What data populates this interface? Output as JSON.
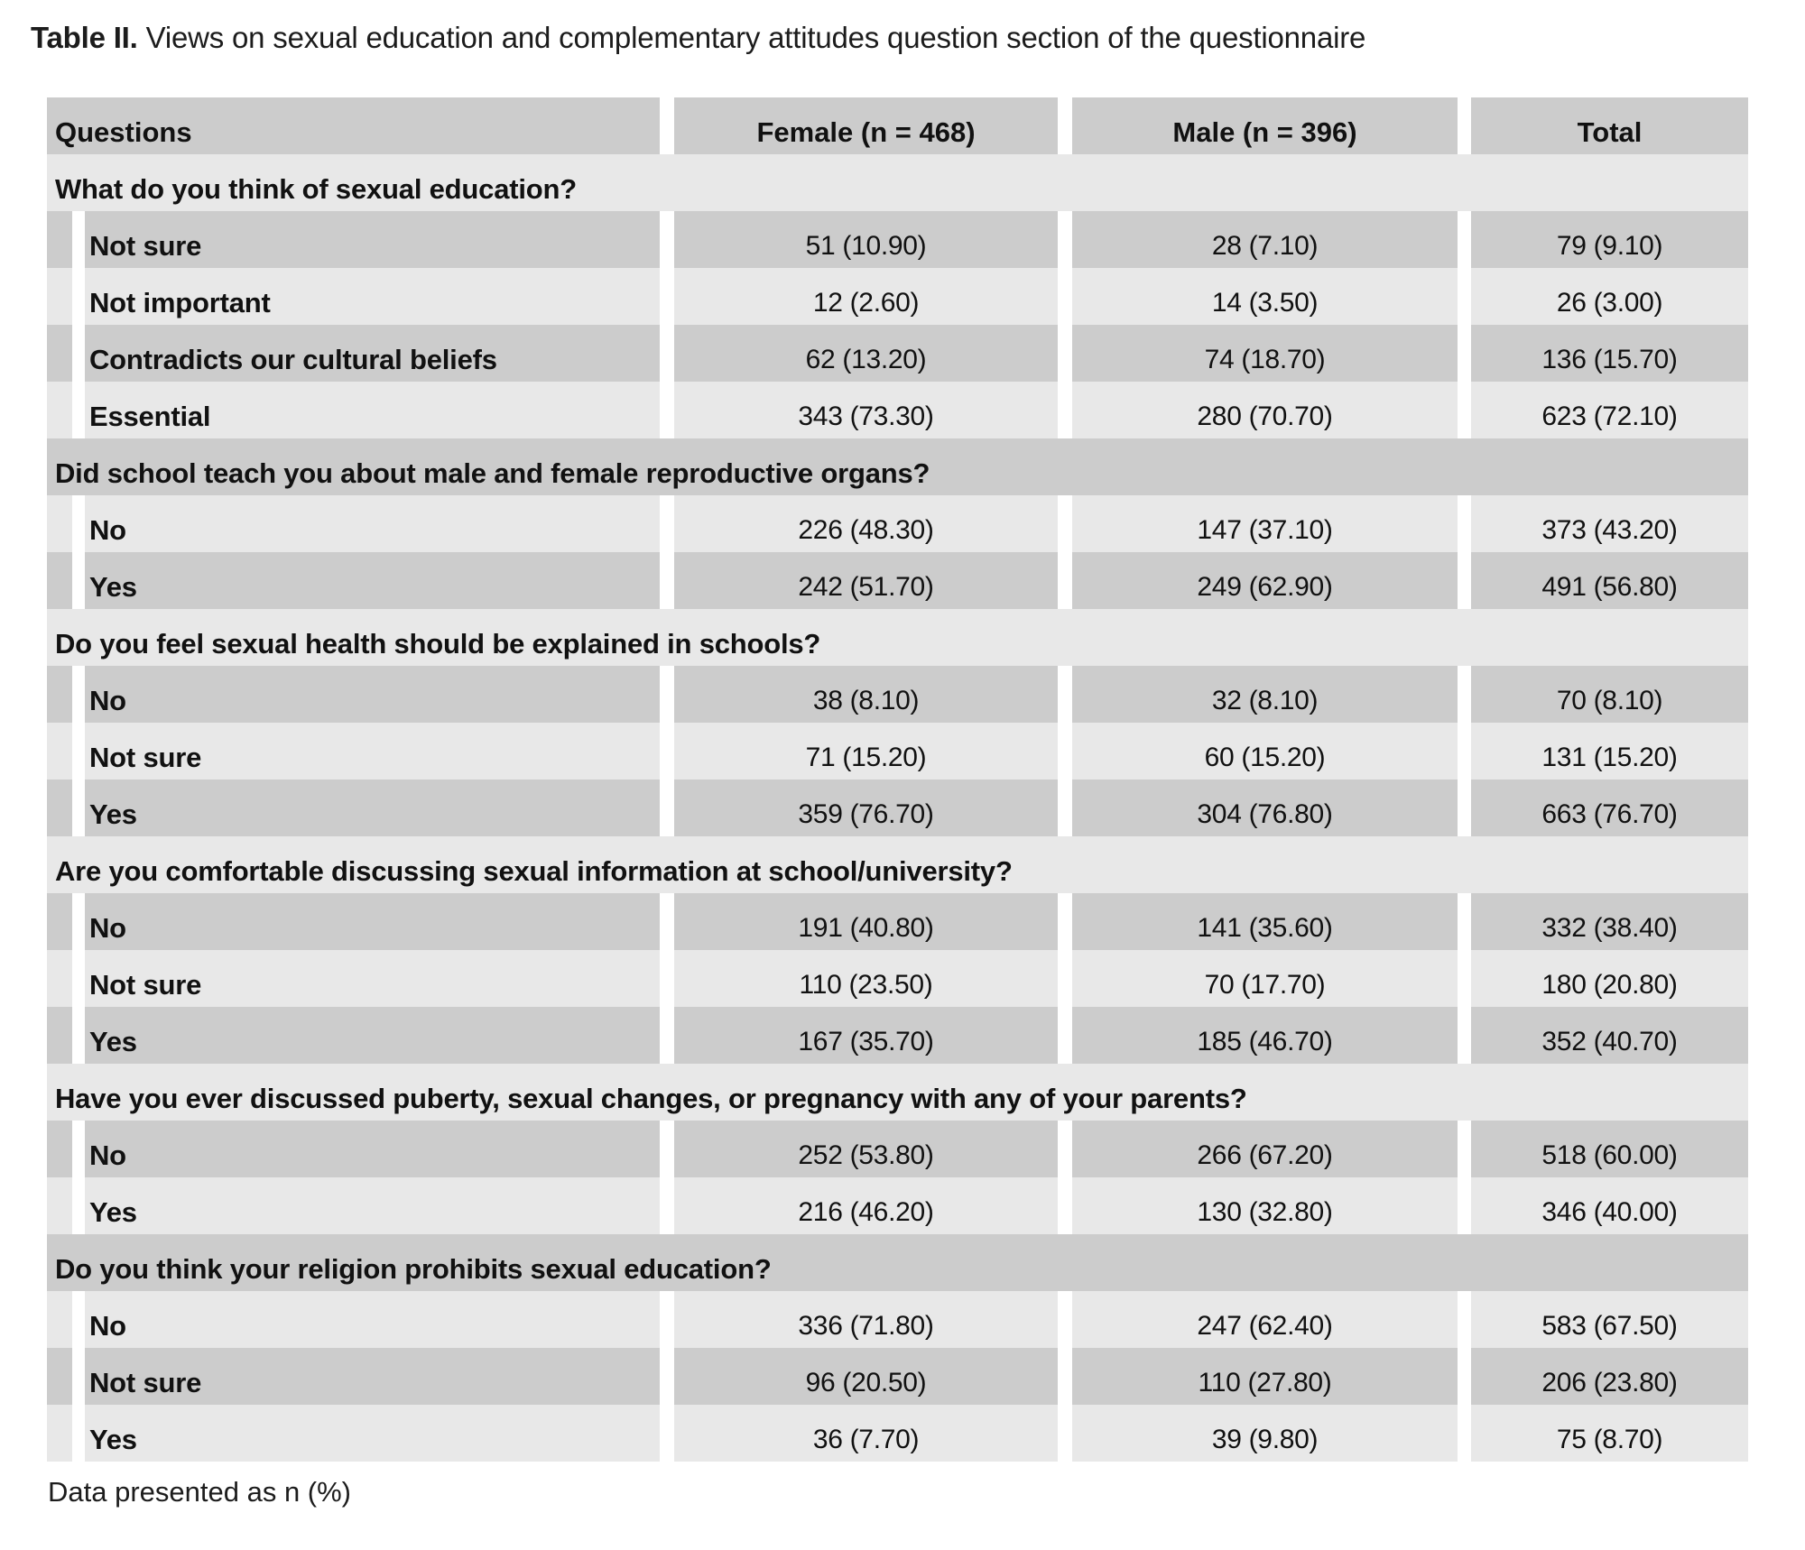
{
  "title": {
    "label": "Table II.",
    "caption": "Views on sexual education and complementary attitudes question section of the questionnaire"
  },
  "footer": "Data presented as n (%)",
  "colors": {
    "row_medium": "#cccccc",
    "row_light": "#e8e8e8",
    "background": "#ffffff",
    "text": "#111111"
  },
  "table": {
    "columns": [
      "Questions",
      "Female (n = 468)",
      "Male (n = 396)",
      "Total"
    ],
    "sections": [
      {
        "question": "What do you think of sexual education?",
        "rows": [
          {
            "label": "Not sure",
            "female": "51 (10.90)",
            "male": "28 (7.10)",
            "total": "79 (9.10)"
          },
          {
            "label": "Not important",
            "female": "12 (2.60)",
            "male": "14 (3.50)",
            "total": "26 (3.00)"
          },
          {
            "label": "Contradicts our cultural beliefs",
            "female": "62 (13.20)",
            "male": "74 (18.70)",
            "total": "136 (15.70)"
          },
          {
            "label": "Essential",
            "female": "343 (73.30)",
            "male": "280 (70.70)",
            "total": "623 (72.10)"
          }
        ]
      },
      {
        "question": "Did school teach you about male and female reproductive organs?",
        "rows": [
          {
            "label": "No",
            "female": "226 (48.30)",
            "male": "147 (37.10)",
            "total": "373 (43.20)"
          },
          {
            "label": "Yes",
            "female": "242 (51.70)",
            "male": "249 (62.90)",
            "total": "491 (56.80)"
          }
        ]
      },
      {
        "question": "Do you feel sexual health should be explained in schools?",
        "rows": [
          {
            "label": "No",
            "female": "38 (8.10)",
            "male": "32 (8.10)",
            "total": "70 (8.10)"
          },
          {
            "label": "Not sure",
            "female": "71 (15.20)",
            "male": "60 (15.20)",
            "total": "131 (15.20)"
          },
          {
            "label": "Yes",
            "female": "359 (76.70)",
            "male": "304 (76.80)",
            "total": "663 (76.70)"
          }
        ]
      },
      {
        "question": "Are you comfortable discussing sexual information at school/university?",
        "rows": [
          {
            "label": "No",
            "female": "191 (40.80)",
            "male": "141 (35.60)",
            "total": "332 (38.40)"
          },
          {
            "label": "Not sure",
            "female": "110 (23.50)",
            "male": "70 (17.70)",
            "total": "180 (20.80)"
          },
          {
            "label": "Yes",
            "female": "167 (35.70)",
            "male": "185 (46.70)",
            "total": "352 (40.70)"
          }
        ]
      },
      {
        "question": "Have you ever discussed puberty, sexual changes, or pregnancy with any of your parents?",
        "rows": [
          {
            "label": "No",
            "female": "252 (53.80)",
            "male": "266 (67.20)",
            "total": "518 (60.00)"
          },
          {
            "label": "Yes",
            "female": "216 (46.20)",
            "male": "130 (32.80)",
            "total": "346 (40.00)"
          }
        ]
      },
      {
        "question": "Do you think your religion prohibits sexual education?",
        "rows": [
          {
            "label": "No",
            "female": "336 (71.80)",
            "male": "247 (62.40)",
            "total": "583 (67.50)"
          },
          {
            "label": "Not sure",
            "female": "96 (20.50)",
            "male": "110 (27.80)",
            "total": "206 (23.80)"
          },
          {
            "label": "Yes",
            "female": "36 (7.70)",
            "male": "39 (9.80)",
            "total": "75 (8.70)"
          }
        ]
      }
    ]
  }
}
